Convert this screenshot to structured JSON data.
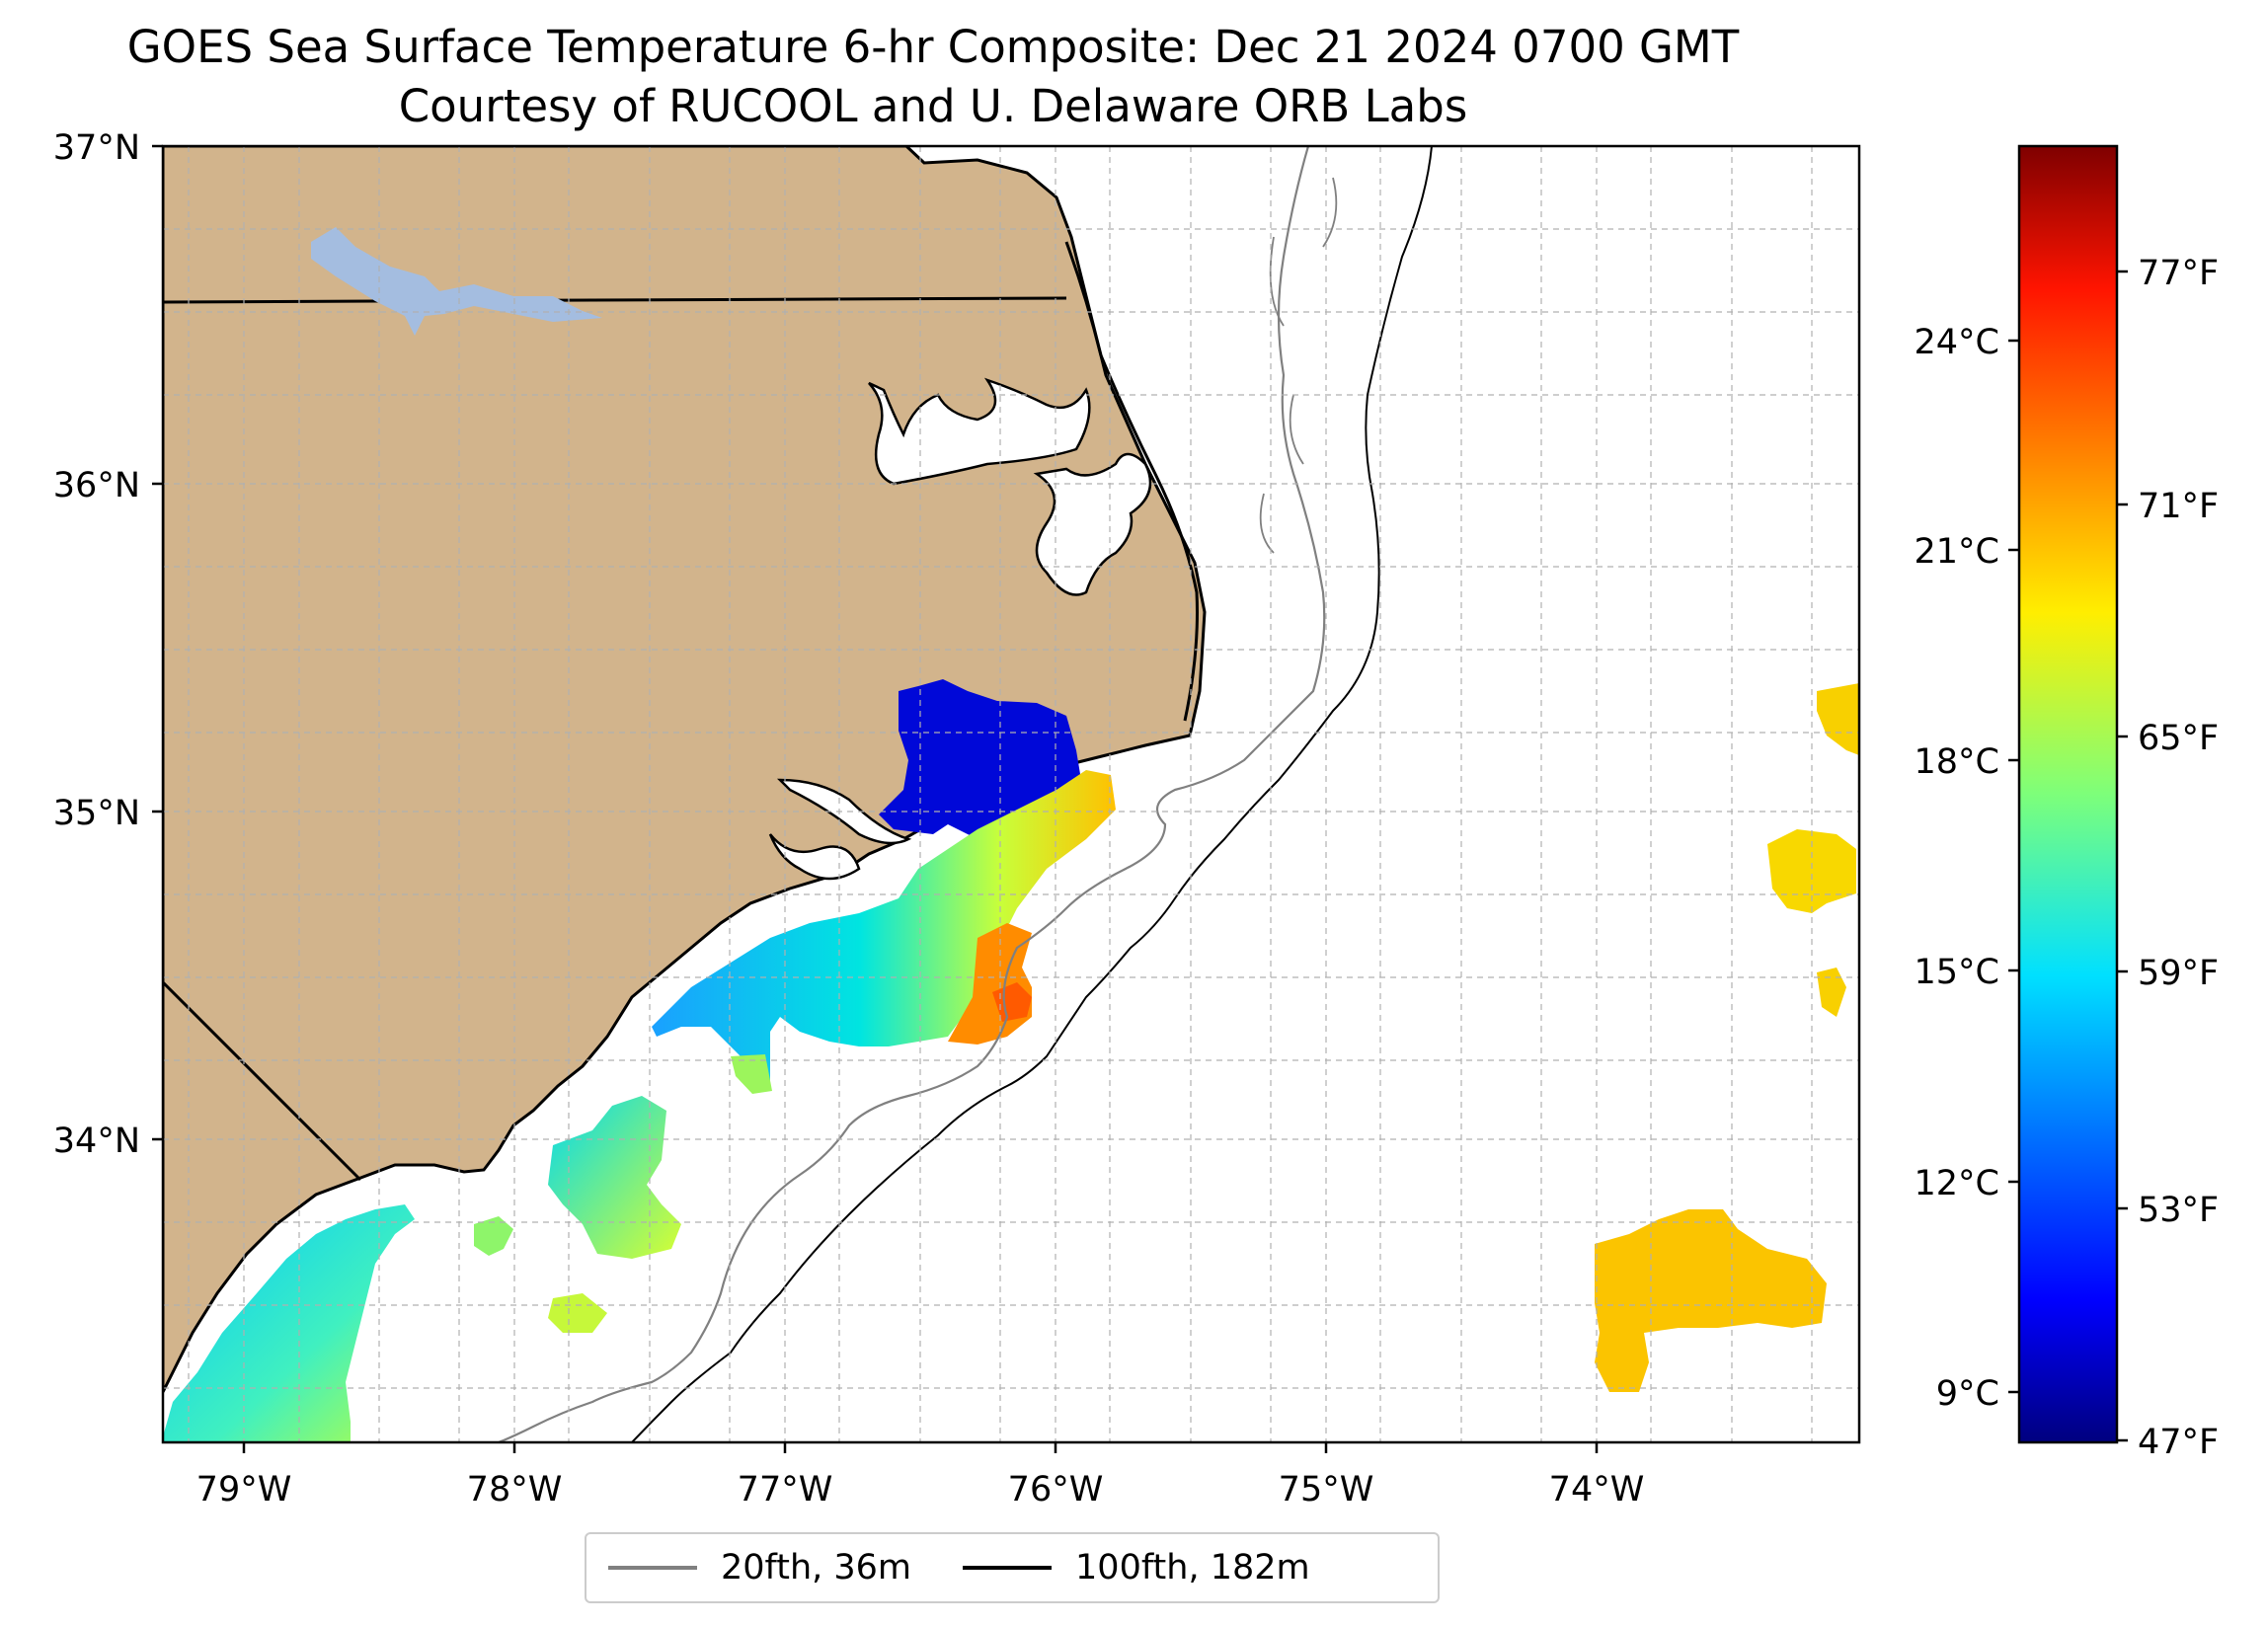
{
  "title": {
    "line1": "GOES Sea Surface Temperature 6-hr Composite: Dec 21 2024 0700 GMT",
    "line2": "Courtesy of RUCOOL and U. Delaware ORB Labs"
  },
  "axes": {
    "lat_ticks": [
      "37°N",
      "36°N",
      "35°N",
      "34°N"
    ],
    "lon_ticks": [
      "79°W",
      "78°W",
      "77°W",
      "76°W",
      "75°W",
      "74°W"
    ],
    "lat_range": [
      33.1,
      37.0
    ],
    "lon_range": [
      -79.3,
      -73.1
    ],
    "grid": true
  },
  "colorbar": {
    "celsius_ticks": [
      "24°C",
      "21°C",
      "18°C",
      "15°C",
      "12°C",
      "9°C"
    ],
    "fahrenheit_ticks": [
      "77°F",
      "71°F",
      "65°F",
      "59°F",
      "53°F",
      "47°F"
    ],
    "range_f": [
      47,
      80
    ],
    "colormap": "jet"
  },
  "legend": {
    "items": [
      {
        "label": "20fth, 36m",
        "color": "#808080"
      },
      {
        "label": "100fth, 182m",
        "color": "#000000"
      }
    ]
  },
  "colors": {
    "land": "#d2b48c",
    "water": "#ffffff",
    "lake": "#a4bde0",
    "coast": "#000000"
  }
}
